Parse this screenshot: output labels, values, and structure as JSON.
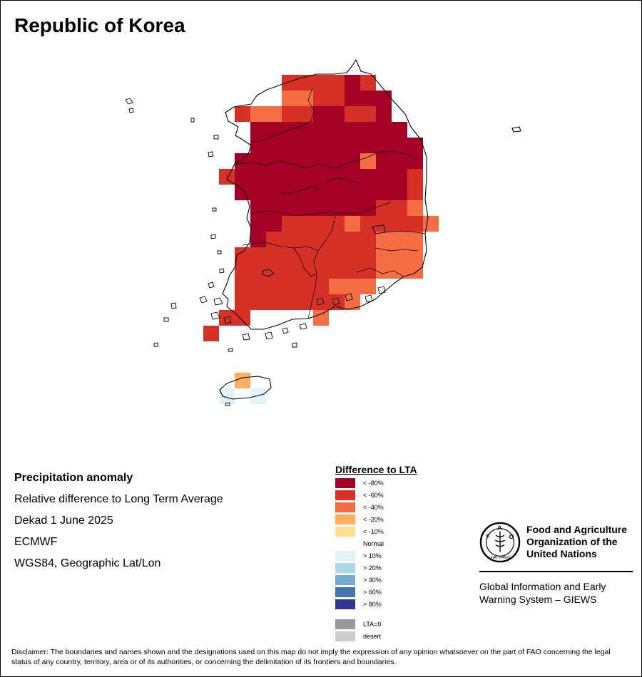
{
  "title": "Republic of Korea",
  "info": {
    "line1": "Precipitation anomaly",
    "line2": "Relative difference to Long Term Average",
    "line3": "Dekad 1 June 2025",
    "line4": "ECMWF",
    "line5": "WGS84, Geographic Lat/Lon"
  },
  "legend": {
    "title": "Difference to LTA",
    "items": [
      {
        "label": "< -80%",
        "color": "#a50026"
      },
      {
        "label": "< -60%",
        "color": "#d73027"
      },
      {
        "label": "< -40%",
        "color": "#f46d43"
      },
      {
        "label": "< -20%",
        "color": "#fdae61"
      },
      {
        "label": "< -10%",
        "color": "#fee090"
      },
      {
        "label": "Normal",
        "color": "#ffffff"
      },
      {
        "label": "> 10%",
        "color": "#e0f3f8"
      },
      {
        "label": "> 20%",
        "color": "#abd9e9"
      },
      {
        "label": "> 40%",
        "color": "#74add1"
      },
      {
        "label": "> 60%",
        "color": "#4575b4"
      },
      {
        "label": "> 80%",
        "color": "#313695"
      },
      {
        "label": "LTA=0",
        "color": "#999999"
      },
      {
        "label": "desert",
        "color": "#cccccc"
      }
    ]
  },
  "fao": {
    "logo_text": "FAO",
    "logo_motto": "FIAT PANIS",
    "name_line1": "Food and Agriculture",
    "name_line2": "Organization of the",
    "name_line3": "United Nations",
    "giews_line1": "Global Information and Early",
    "giews_line2": "Warning System – GIEWS"
  },
  "disclaimer": "Disclaimer: The boundaries and names shown and the designations used on this map do not imply the expression of any opinion whatsoever on the part of FAO concerning the legal status of any country, territory, area or of its authorities, or concerning the delimitation of its frontiers and boundaries.",
  "map": {
    "anomaly_classes_shown": [
      "< -80%",
      "< -60%",
      "< -40%",
      "< -20%",
      "> 10%"
    ],
    "cells": [
      [
        "r0",
        395,
        105,
        1
      ],
      [
        "r0",
        417,
        105,
        1
      ],
      [
        "r0",
        439,
        105,
        1
      ],
      [
        "r0",
        461,
        105,
        1
      ],
      [
        "r0",
        483,
        105,
        0
      ],
      [
        "r0",
        505,
        105,
        1
      ],
      [
        "r1",
        395,
        127,
        2
      ],
      [
        "r1",
        417,
        127,
        2
      ],
      [
        "r1",
        439,
        127,
        1
      ],
      [
        "r1",
        461,
        127,
        1
      ],
      [
        "r1",
        483,
        127,
        0
      ],
      [
        "r1",
        505,
        127,
        0
      ],
      [
        "r1",
        527,
        127,
        0
      ],
      [
        "r2",
        329,
        149,
        1
      ],
      [
        "r2",
        351,
        149,
        2
      ],
      [
        "r2",
        373,
        149,
        2
      ],
      [
        "r2",
        395,
        149,
        1
      ],
      [
        "r2",
        417,
        149,
        1
      ],
      [
        "r2",
        439,
        149,
        0
      ],
      [
        "r2",
        461,
        149,
        0
      ],
      [
        "r2",
        483,
        149,
        1
      ],
      [
        "r2",
        505,
        149,
        1
      ],
      [
        "r2",
        527,
        149,
        0
      ],
      [
        "r3",
        351,
        171,
        0
      ],
      [
        "r3",
        373,
        171,
        0
      ],
      [
        "r3",
        395,
        171,
        0
      ],
      [
        "r3",
        417,
        171,
        0
      ],
      [
        "r3",
        439,
        171,
        0
      ],
      [
        "r3",
        461,
        171,
        0
      ],
      [
        "r3",
        483,
        171,
        0
      ],
      [
        "r3",
        505,
        171,
        0
      ],
      [
        "r3",
        527,
        171,
        0
      ],
      [
        "r3",
        549,
        171,
        0
      ],
      [
        "r4",
        351,
        193,
        0
      ],
      [
        "r4",
        373,
        193,
        0
      ],
      [
        "r4",
        395,
        193,
        0
      ],
      [
        "r4",
        417,
        193,
        0
      ],
      [
        "r4",
        439,
        193,
        0
      ],
      [
        "r4",
        461,
        193,
        0
      ],
      [
        "r4",
        483,
        193,
        0
      ],
      [
        "r4",
        505,
        193,
        0
      ],
      [
        "r4",
        527,
        193,
        0
      ],
      [
        "r4",
        549,
        193,
        0
      ],
      [
        "r4",
        571,
        193,
        0
      ],
      [
        "r5",
        329,
        215,
        0
      ],
      [
        "r5",
        351,
        215,
        0
      ],
      [
        "r5",
        373,
        215,
        0
      ],
      [
        "r5",
        395,
        215,
        0
      ],
      [
        "r5",
        417,
        215,
        0
      ],
      [
        "r5",
        439,
        215,
        0
      ],
      [
        "r5",
        461,
        215,
        0
      ],
      [
        "r5",
        483,
        215,
        0
      ],
      [
        "r5",
        505,
        215,
        2
      ],
      [
        "r5",
        527,
        215,
        0
      ],
      [
        "r5",
        549,
        215,
        0
      ],
      [
        "r5",
        571,
        215,
        0
      ],
      [
        "r6",
        307,
        237,
        1
      ],
      [
        "r6",
        329,
        237,
        0
      ],
      [
        "r6",
        351,
        237,
        0
      ],
      [
        "r6",
        373,
        237,
        0
      ],
      [
        "r6",
        395,
        237,
        0
      ],
      [
        "r6",
        417,
        237,
        0
      ],
      [
        "r6",
        439,
        237,
        0
      ],
      [
        "r6",
        461,
        237,
        0
      ],
      [
        "r6",
        483,
        237,
        0
      ],
      [
        "r6",
        505,
        237,
        0
      ],
      [
        "r6",
        527,
        237,
        0
      ],
      [
        "r6",
        549,
        237,
        0
      ],
      [
        "r6",
        571,
        237,
        1
      ],
      [
        "r7",
        329,
        259,
        0
      ],
      [
        "r7",
        351,
        259,
        0
      ],
      [
        "r7",
        373,
        259,
        0
      ],
      [
        "r7",
        395,
        259,
        0
      ],
      [
        "r7",
        417,
        259,
        0
      ],
      [
        "r7",
        439,
        259,
        0
      ],
      [
        "r7",
        461,
        259,
        0
      ],
      [
        "r7",
        483,
        259,
        0
      ],
      [
        "r7",
        505,
        259,
        0
      ],
      [
        "r7",
        527,
        259,
        0
      ],
      [
        "r7",
        549,
        259,
        0
      ],
      [
        "r7",
        571,
        259,
        1
      ],
      [
        "r8",
        351,
        281,
        0
      ],
      [
        "r8",
        373,
        281,
        0
      ],
      [
        "r8",
        395,
        281,
        0
      ],
      [
        "r8",
        417,
        281,
        0
      ],
      [
        "r8",
        439,
        281,
        0
      ],
      [
        "r8",
        461,
        281,
        0
      ],
      [
        "r8",
        483,
        281,
        0
      ],
      [
        "r8",
        505,
        281,
        0
      ],
      [
        "r8",
        527,
        281,
        1
      ],
      [
        "r8",
        549,
        281,
        1
      ],
      [
        "r8",
        571,
        281,
        2
      ],
      [
        "r9",
        351,
        303,
        0
      ],
      [
        "r9",
        373,
        303,
        0
      ],
      [
        "r9",
        395,
        303,
        1
      ],
      [
        "r9",
        417,
        303,
        1
      ],
      [
        "r9",
        439,
        303,
        1
      ],
      [
        "r9",
        461,
        303,
        1
      ],
      [
        "r9",
        483,
        303,
        2
      ],
      [
        "r9",
        505,
        303,
        1
      ],
      [
        "r9",
        527,
        303,
        1
      ],
      [
        "r9",
        549,
        303,
        1
      ],
      [
        "r9",
        571,
        303,
        1
      ],
      [
        "r9",
        593,
        303,
        2
      ],
      [
        "r10",
        351,
        325,
        0
      ],
      [
        "r10",
        373,
        325,
        1
      ],
      [
        "r10",
        395,
        325,
        1
      ],
      [
        "r10",
        417,
        325,
        1
      ],
      [
        "r10",
        439,
        325,
        1
      ],
      [
        "r10",
        461,
        325,
        1
      ],
      [
        "r10",
        483,
        325,
        1
      ],
      [
        "r10",
        505,
        325,
        1
      ],
      [
        "r10",
        527,
        325,
        2
      ],
      [
        "r10",
        549,
        325,
        2
      ],
      [
        "r10",
        571,
        325,
        2
      ],
      [
        "r11",
        329,
        347,
        1
      ],
      [
        "r11",
        351,
        347,
        1
      ],
      [
        "r11",
        373,
        347,
        1
      ],
      [
        "r11",
        395,
        347,
        1
      ],
      [
        "r11",
        417,
        347,
        1
      ],
      [
        "r11",
        439,
        347,
        1
      ],
      [
        "r11",
        461,
        347,
        1
      ],
      [
        "r11",
        483,
        347,
        1
      ],
      [
        "r11",
        505,
        347,
        1
      ],
      [
        "r11",
        527,
        347,
        2
      ],
      [
        "r11",
        549,
        347,
        2
      ],
      [
        "r11",
        571,
        347,
        2
      ],
      [
        "r12",
        329,
        369,
        1
      ],
      [
        "r12",
        351,
        369,
        1
      ],
      [
        "r12",
        373,
        369,
        1
      ],
      [
        "r12",
        395,
        369,
        1
      ],
      [
        "r12",
        417,
        369,
        1
      ],
      [
        "r12",
        439,
        369,
        1
      ],
      [
        "r12",
        461,
        369,
        1
      ],
      [
        "r12",
        483,
        369,
        1
      ],
      [
        "r12",
        505,
        369,
        1
      ],
      [
        "r12",
        527,
        369,
        2
      ],
      [
        "r12",
        549,
        369,
        2
      ],
      [
        "r12",
        571,
        369,
        2
      ],
      [
        "r13",
        329,
        391,
        1
      ],
      [
        "r13",
        351,
        391,
        1
      ],
      [
        "r13",
        373,
        391,
        1
      ],
      [
        "r13",
        395,
        391,
        1
      ],
      [
        "r13",
        417,
        391,
        1
      ],
      [
        "r13",
        439,
        391,
        1
      ],
      [
        "r13",
        461,
        391,
        2
      ],
      [
        "r13",
        483,
        391,
        2
      ],
      [
        "r13",
        505,
        391,
        2
      ],
      [
        "r14",
        329,
        413,
        1
      ],
      [
        "r14",
        351,
        413,
        1
      ],
      [
        "r14",
        373,
        413,
        1
      ],
      [
        "r14",
        395,
        413,
        1
      ],
      [
        "r14",
        417,
        413,
        1
      ],
      [
        "r14",
        439,
        413,
        1
      ],
      [
        "r14",
        461,
        413,
        1
      ],
      [
        "r14",
        483,
        413,
        2
      ],
      [
        "r15",
        307,
        435,
        1
      ],
      [
        "r15",
        329,
        435,
        1
      ],
      [
        "r15",
        439,
        435,
        2
      ],
      [
        "r16",
        285,
        457,
        1
      ],
      [
        "r17",
        329,
        523,
        3
      ],
      [
        "r18",
        307,
        545,
        6
      ],
      [
        "r18",
        351,
        545,
        6
      ]
    ]
  }
}
